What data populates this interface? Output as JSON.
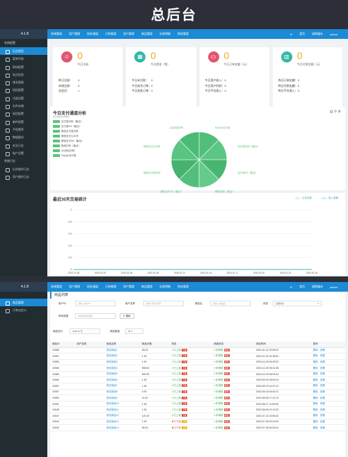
{
  "banner_title": "总后台",
  "app": {
    "version": "4.1.8",
    "admin": "admin"
  },
  "nav": [
    "系统管理",
    "用户管理",
    "网关通道",
    "订单管理",
    "用户管理",
    "商品管理",
    "交易明细",
    "财务管理"
  ],
  "top_right": [
    "首页",
    "清除缓存"
  ],
  "sidebar1": {
    "section1": "系统配置",
    "items": [
      "后台首页",
      "菜单列表",
      "网站配置",
      "站点信息",
      "域名管理",
      "短信配置",
      "注册设置",
      "文件存储",
      "短信配置",
      "邮件配置",
      "手续费率",
      "数据备份",
      "安全日志",
      "账户设置"
    ],
    "section2": "系统日志",
    "items2": [
      "后台操作日志",
      "用户操作日志"
    ]
  },
  "cards": [
    {
      "icon": "users-icon",
      "color": "#e2566f",
      "num": "0",
      "label": "今日注册",
      "rows": [
        [
          "昨日注册：",
          "0"
        ],
        [
          "本周注册：",
          "0"
        ],
        [
          "总会员：",
          "1"
        ]
      ]
    },
    {
      "icon": "calendar-icon",
      "color": "#36b7a5",
      "num": "0",
      "label": "今日提现（笔）",
      "rows": [
        [
          "今日未付款：",
          "0"
        ],
        [
          "今日成功订单：",
          "0"
        ],
        [
          "今日失败订单：",
          "0"
        ]
      ]
    },
    {
      "icon": "card-icon",
      "color": "#e2566f",
      "num": "0",
      "label": "今日订单金额（元）",
      "rows": [
        [
          "今日用户收入：",
          "0"
        ],
        [
          "今日用户利润：",
          "0"
        ],
        [
          "今日平台收入：",
          "0"
        ]
      ]
    },
    {
      "icon": "building-icon",
      "color": "#36b7a5",
      "num": "0",
      "label": "今日付款金额（元）",
      "rows": [
        [
          "昨日订单金额：",
          "0"
        ],
        [
          "昨日付款金额：",
          "0"
        ],
        [
          "昨日平台收入：",
          "0"
        ]
      ]
    }
  ],
  "pie_panel": {
    "title": "今日支付通道分析",
    "subtitle": "支付通道分布统计",
    "legend": [
      "支付宝扫码（聚合）",
      "支付宝H5（聚合）",
      "微信支付宝扫码",
      "微信支付公众号",
      "微信支付H5（聚合）",
      "微信扫码（聚合）",
      "QQ钱包扫码",
      "PayApi支付宝"
    ],
    "slice_labels": [
      "PayApi支付宝",
      "支付宝扫码（聚合）",
      "支付宝H5（聚合）",
      "微信扫码（聚合）",
      "微信支付H5（聚合）",
      "微信支付宝扫码",
      "微信支付公众号",
      "QQ钱包扫码"
    ]
  },
  "line_panel": {
    "title": "最近30天交易统计",
    "legend": [
      "交易金额",
      "收入金额"
    ],
    "y_ticks": [
      "0",
      "0.2",
      "0.4",
      "0.6",
      "0.8",
      "1"
    ],
    "x_ticks": [
      "2023-12-28",
      "2024-01-02",
      "2024-01-05",
      "2024-01-08",
      "2024-01-11",
      "2024-01-14",
      "2024-01-17",
      "2024-01-20",
      "2024-01-23",
      "2024-01-26"
    ]
  },
  "chart_data": {
    "type": "line",
    "title": "最近30天交易统计",
    "series": [
      {
        "name": "交易金额",
        "values": [
          0,
          0,
          0,
          0,
          0,
          0,
          0,
          0,
          0,
          0
        ]
      },
      {
        "name": "收入金额",
        "values": [
          0,
          0,
          0,
          0,
          0,
          0,
          0,
          0,
          0,
          0
        ]
      }
    ],
    "x": [
      "2023-12-28",
      "2024-01-02",
      "2024-01-05",
      "2024-01-08",
      "2024-01-11",
      "2024-01-14",
      "2024-01-17",
      "2024-01-20",
      "2024-01-23",
      "2024-01-26"
    ],
    "ylim": [
      0,
      1
    ]
  },
  "sidebar2": {
    "items": [
      "商品管理",
      "订单自定义"
    ]
  },
  "goods": {
    "title": "商品列表",
    "filters": {
      "user_id_label": "用户ID",
      "user_id_ph": "请输入用户ID",
      "user_name_label": "用户名称",
      "user_name_ph": "请输入用户名称",
      "goods_label": "商品名",
      "goods_ph": "请输入商品名",
      "status_label": "状态",
      "status_value": "全部状态",
      "time_label": "时间范围",
      "time_ph": "请选择时间范围",
      "search": "搜索",
      "total_label": "商品总价",
      "total_value": "7033.11 元",
      "count_label": "商品数量",
      "count_value": "34 个"
    },
    "columns": [
      "商品ID",
      "用户名称",
      "商品名称",
      "商品价格",
      "状态",
      "商城状态",
      "添加时间",
      "操作"
    ],
    "rows": [
      [
        "10068",
        "",
        "测试商品1",
        "50.00",
        "已上架",
        "下架",
        "未审核",
        "审核",
        "2024-01-22 22:55:22"
      ],
      [
        "10067",
        "",
        "测试商品2",
        "1.00",
        "已上架",
        "下架",
        "未审核",
        "审核",
        "2023-11-01 04:18:54"
      ],
      [
        "10066",
        "",
        "测试商品3",
        "1.00",
        "已上架",
        "下架",
        "未审核",
        "审核",
        "2023-10-25 06:28:22"
      ],
      [
        "10065",
        "",
        "测试商品4",
        "598.00",
        "已上架",
        "下架",
        "未审核",
        "审核",
        "2023-10-25 06:21:35"
      ],
      [
        "10065",
        "",
        "测试商品5",
        "500.00",
        "已上架",
        "下架",
        "未审核",
        "审核",
        "2023-10-25 06:04:44"
      ],
      [
        "10060",
        "",
        "测试商品6",
        "1.00",
        "已上架",
        "下架",
        "未审核",
        "审核",
        "2023-09-29 15:00:13"
      ],
      [
        "10057",
        "",
        "测试商品7",
        "1.00",
        "已上架",
        "下架",
        "未审核",
        "审核",
        "2023-09-19 14:47:12"
      ],
      [
        "10057",
        "",
        "测试商品8",
        "5.00",
        "已上架",
        "下架",
        "未审核",
        "审核",
        "2023-09-18 04:42:21"
      ],
      [
        "10054",
        "",
        "测试商品9",
        "11.00",
        "已上架",
        "下架",
        "未审核",
        "审核",
        "2023-08-06 17:12:12"
      ],
      [
        "10051",
        "",
        "测试商品10",
        "1.00",
        "已上架",
        "下架",
        "未审核",
        "审核",
        "2023-08-17 11:59:50"
      ],
      [
        "10048",
        "",
        "测试商品11",
        "1.00",
        "已上架",
        "下架",
        "未审核",
        "审核",
        "2023-08-09 21:12:20"
      ],
      [
        "10047",
        "",
        "测试商品12",
        "121.00",
        "已上架",
        "下架",
        "未审核",
        "审核",
        "2023-07-20 22:55:22"
      ],
      [
        "10044",
        "",
        "测试商品13",
        "1.00",
        "已下架",
        "上架",
        "未审核",
        "审核",
        "2023-07-08 00:10:00"
      ],
      [
        "10043",
        "",
        "测试商品14",
        "66.00",
        "已下架",
        "上架",
        "未审核",
        "审核",
        "2023-07-08 00:00:01"
      ]
    ],
    "actions": [
      "删除",
      "查看"
    ]
  }
}
